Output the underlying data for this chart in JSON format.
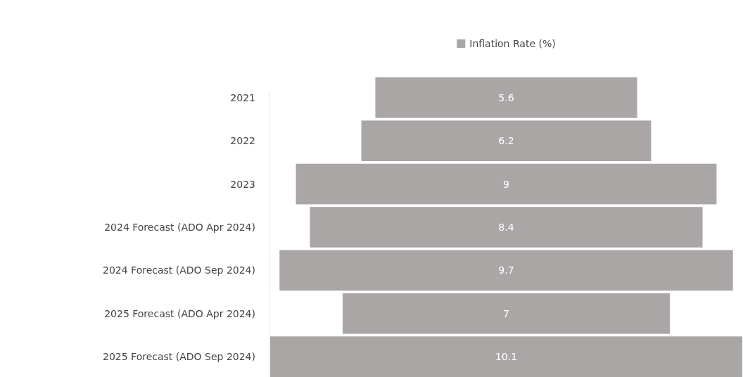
{
  "chart_data": {
    "type": "other",
    "categories": [
      "2021",
      "2022",
      "2023",
      "2024 Forecast (ADO Apr 2024)",
      "2024 Forecast (ADO Sep 2024)",
      "2025 Forecast (ADO Apr 2024)",
      "2025 Forecast (ADO Sep 2024)"
    ],
    "series": [
      {
        "name": "Inflation Rate (%)",
        "color": "#aaa6a6",
        "values": [
          5.6,
          6.2,
          9,
          8.4,
          9.7,
          7,
          10.1
        ]
      }
    ],
    "data_labels": true,
    "legend": "top"
  }
}
